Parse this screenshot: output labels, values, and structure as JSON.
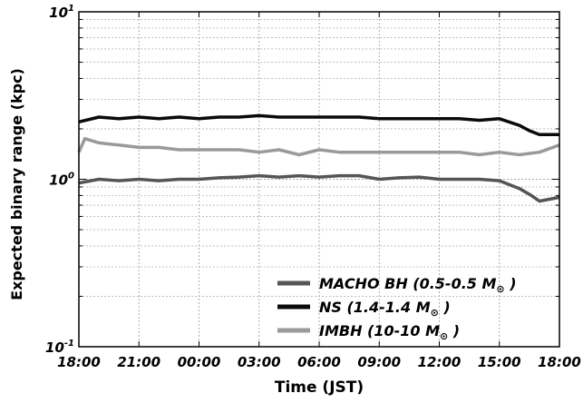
{
  "chart_data": {
    "type": "line",
    "xlabel": "Time (JST)",
    "ylabel": "Expected binary range (kpc)",
    "x_tick_labels": [
      "18:00",
      "21:00",
      "00:00",
      "03:00",
      "06:00",
      "09:00",
      "12:00",
      "15:00",
      "18:00"
    ],
    "x_tick_hours": [
      0,
      3,
      6,
      9,
      12,
      15,
      18,
      21,
      24
    ],
    "x_range_hours": [
      0,
      24
    ],
    "y_scale": "log",
    "ylim": [
      0.1,
      10
    ],
    "y_ticks": [
      {
        "value": 10,
        "base": "10",
        "exp": "1"
      },
      {
        "value": 1,
        "base": "10",
        "exp": "0"
      },
      {
        "value": 0.1,
        "base": "10",
        "exp": "-1"
      }
    ],
    "grid": true,
    "legend_position": "bottom-right",
    "series": [
      {
        "name": "NS (1.4-1.4 M",
        "name_suffix": " )",
        "color": "#0a0a0a",
        "points": [
          [
            0,
            2.2
          ],
          [
            1,
            2.35
          ],
          [
            2,
            2.3
          ],
          [
            3,
            2.35
          ],
          [
            4,
            2.3
          ],
          [
            5,
            2.35
          ],
          [
            6,
            2.3
          ],
          [
            7,
            2.35
          ],
          [
            8,
            2.35
          ],
          [
            9,
            2.4
          ],
          [
            10,
            2.35
          ],
          [
            11,
            2.35
          ],
          [
            12,
            2.35
          ],
          [
            13,
            2.35
          ],
          [
            14,
            2.35
          ],
          [
            15,
            2.3
          ],
          [
            16,
            2.3
          ],
          [
            17,
            2.3
          ],
          [
            18,
            2.3
          ],
          [
            19,
            2.3
          ],
          [
            20,
            2.25
          ],
          [
            21,
            2.3
          ],
          [
            22,
            2.1
          ],
          [
            22.5,
            1.95
          ],
          [
            23,
            1.85
          ],
          [
            23.5,
            1.85
          ],
          [
            24,
            1.85
          ]
        ]
      },
      {
        "name": "IMBH (10-10 M",
        "name_suffix": " )",
        "color": "#9a9a9a",
        "points": [
          [
            0,
            1.45
          ],
          [
            0.3,
            1.75
          ],
          [
            1,
            1.65
          ],
          [
            2,
            1.6
          ],
          [
            3,
            1.55
          ],
          [
            4,
            1.55
          ],
          [
            5,
            1.5
          ],
          [
            6,
            1.5
          ],
          [
            7,
            1.5
          ],
          [
            8,
            1.5
          ],
          [
            9,
            1.45
          ],
          [
            10,
            1.5
          ],
          [
            11,
            1.4
          ],
          [
            12,
            1.5
          ],
          [
            13,
            1.45
          ],
          [
            14,
            1.45
          ],
          [
            15,
            1.45
          ],
          [
            16,
            1.45
          ],
          [
            17,
            1.45
          ],
          [
            18,
            1.45
          ],
          [
            19,
            1.45
          ],
          [
            20,
            1.4
          ],
          [
            21,
            1.45
          ],
          [
            22,
            1.4
          ],
          [
            23,
            1.45
          ],
          [
            24,
            1.6
          ]
        ]
      },
      {
        "name": "MACHO BH (0.5-0.5 M",
        "name_suffix": " )",
        "color": "#555555",
        "points": [
          [
            0,
            0.95
          ],
          [
            1,
            1.0
          ],
          [
            2,
            0.98
          ],
          [
            3,
            1.0
          ],
          [
            4,
            0.98
          ],
          [
            5,
            1.0
          ],
          [
            6,
            1.0
          ],
          [
            7,
            1.02
          ],
          [
            8,
            1.03
          ],
          [
            9,
            1.05
          ],
          [
            10,
            1.03
          ],
          [
            11,
            1.05
          ],
          [
            12,
            1.03
          ],
          [
            13,
            1.05
          ],
          [
            14,
            1.05
          ],
          [
            15,
            1.0
          ],
          [
            16,
            1.02
          ],
          [
            17,
            1.03
          ],
          [
            18,
            1.0
          ],
          [
            19,
            1.0
          ],
          [
            20,
            1.0
          ],
          [
            21,
            0.98
          ],
          [
            22,
            0.88
          ],
          [
            22.6,
            0.8
          ],
          [
            23,
            0.74
          ],
          [
            23.5,
            0.76
          ],
          [
            24,
            0.78
          ]
        ]
      }
    ],
    "legend_order": [
      2,
      0,
      1
    ],
    "solar_symbol": "⊙"
  }
}
